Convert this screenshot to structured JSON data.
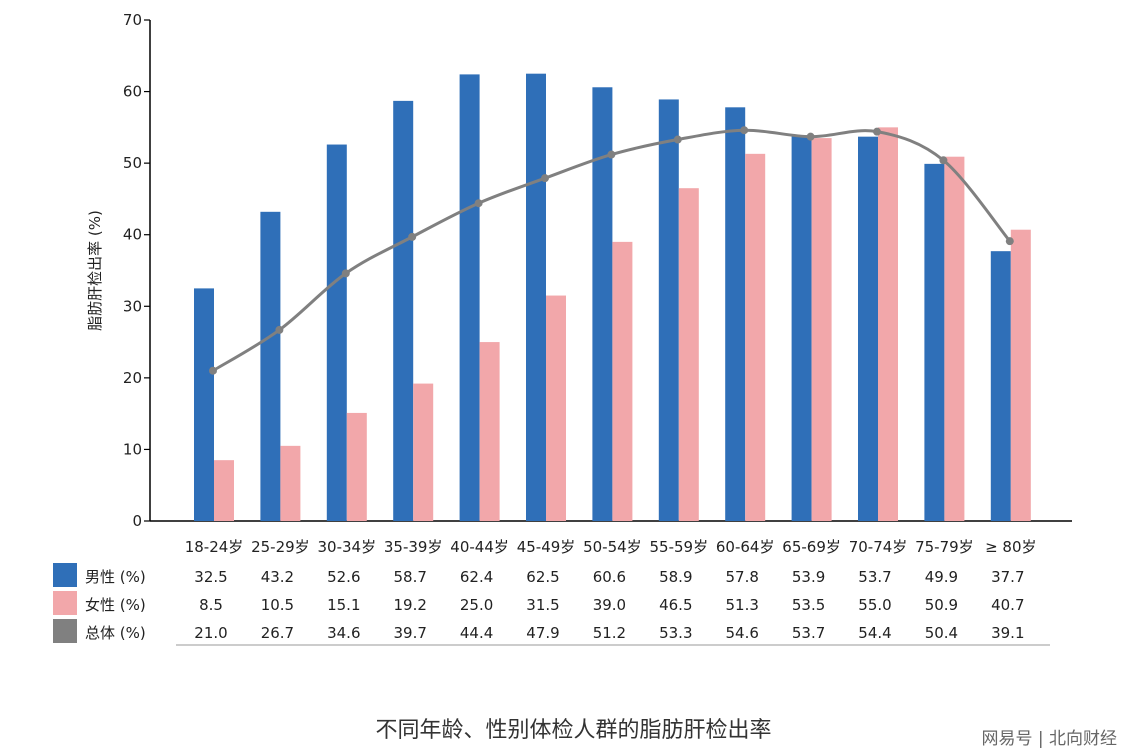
{
  "chart_data": {
    "type": "bar",
    "categories": [
      "18-24岁",
      "25-29岁",
      "30-34岁",
      "35-39岁",
      "40-44岁",
      "45-49岁",
      "50-54岁",
      "55-59岁",
      "60-64岁",
      "65-69岁",
      "70-74岁",
      "75-79岁",
      "≥ 80岁"
    ],
    "series": [
      {
        "name": "男性 (%)",
        "type": "bar",
        "color": "#2f6fb8",
        "values": [
          32.5,
          43.2,
          52.6,
          58.7,
          62.4,
          62.5,
          60.6,
          58.9,
          57.8,
          53.9,
          53.7,
          49.9,
          37.7
        ],
        "labels": [
          "32.5",
          "43.2",
          "52.6",
          "58.7",
          "62.4",
          "62.5",
          "60.6",
          "58.9",
          "57.8",
          "53.9",
          "53.7",
          "49.9",
          "37.7"
        ]
      },
      {
        "name": "女性 (%)",
        "type": "bar",
        "color": "#f2a7aa",
        "values": [
          8.5,
          10.5,
          15.1,
          19.2,
          25.0,
          31.5,
          39.0,
          46.5,
          51.3,
          53.5,
          55.0,
          50.9,
          40.7
        ],
        "labels": [
          "8.5",
          "10.5",
          "15.1",
          "19.2",
          "25.0",
          "31.5",
          "39.0",
          "46.5",
          "51.3",
          "53.5",
          "55.0",
          "50.9",
          "40.7"
        ]
      },
      {
        "name": "总体 (%)",
        "type": "line",
        "color": "#808080",
        "values": [
          21.0,
          26.7,
          34.6,
          39.7,
          44.4,
          47.9,
          51.2,
          53.3,
          54.6,
          53.7,
          54.4,
          50.4,
          39.1
        ],
        "labels": [
          "21.0",
          "26.7",
          "34.6",
          "39.7",
          "44.4",
          "47.9",
          "51.2",
          "53.3",
          "54.6",
          "53.7",
          "54.4",
          "50.4",
          "39.1"
        ]
      }
    ],
    "ylabel": "脂肪肝检出率 (%)",
    "ylim": [
      0,
      70
    ],
    "yticks": [
      "0",
      "10",
      "20",
      "30",
      "40",
      "50",
      "60",
      "70"
    ],
    "grid": false,
    "legend": "table below x-axis"
  },
  "caption": "不同年龄、性别体检人群的脂肪肝检出率",
  "watermark": "网易号 | 北向财经"
}
